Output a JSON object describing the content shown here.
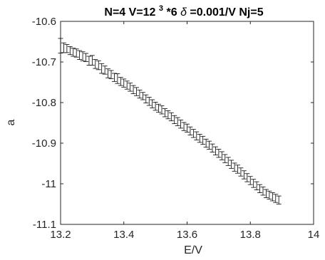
{
  "chart_data": {
    "type": "scatter",
    "title": {
      "part1": "N=4 V=12",
      "sup": "3",
      "part2": "*6 ",
      "delta": "δ",
      "part3": "=0.001/V Nj=5"
    },
    "xlabel": "E/V",
    "ylabel": "a",
    "xlim": [
      13.2,
      14
    ],
    "ylim": [
      -11.1,
      -10.6
    ],
    "xticks": [
      13.2,
      13.4,
      13.6,
      13.8,
      14
    ],
    "xtick_labels": [
      "13.2",
      "13.4",
      "13.6",
      "13.8",
      "14"
    ],
    "yticks": [
      -10.6,
      -10.7,
      -10.8,
      -10.9,
      -11,
      -11.1
    ],
    "ytick_labels": [
      "-10.6",
      "-10.7",
      "-10.8",
      "-10.9",
      "-11",
      "-11.1"
    ],
    "grid": false,
    "legend": "none",
    "series": [
      {
        "color": "#000000",
        "points": [
          [
            13.2,
            -10.66,
            0.018
          ],
          [
            13.21,
            -10.665,
            0.012
          ],
          [
            13.22,
            -10.667,
            0.01
          ],
          [
            13.23,
            -10.672,
            0.01
          ],
          [
            13.24,
            -10.676,
            0.01
          ],
          [
            13.25,
            -10.678,
            0.01
          ],
          [
            13.26,
            -10.683,
            0.011
          ],
          [
            13.27,
            -10.686,
            0.011
          ],
          [
            13.28,
            -10.689,
            0.01
          ],
          [
            13.29,
            -10.697,
            0.011
          ],
          [
            13.3,
            -10.696,
            0.012
          ],
          [
            13.31,
            -10.705,
            0.011
          ],
          [
            13.32,
            -10.708,
            0.011
          ],
          [
            13.33,
            -10.716,
            0.012
          ],
          [
            13.34,
            -10.72,
            0.01
          ],
          [
            13.35,
            -10.728,
            0.011
          ],
          [
            13.36,
            -10.731,
            0.01
          ],
          [
            13.37,
            -10.738,
            0.01
          ],
          [
            13.38,
            -10.741,
            0.012
          ],
          [
            13.39,
            -10.748,
            0.01
          ],
          [
            13.4,
            -10.752,
            0.01
          ],
          [
            13.41,
            -10.757,
            0.01
          ],
          [
            13.42,
            -10.762,
            0.01
          ],
          [
            13.43,
            -10.768,
            0.01
          ],
          [
            13.44,
            -10.773,
            0.01
          ],
          [
            13.45,
            -10.779,
            0.01
          ],
          [
            13.46,
            -10.784,
            0.009
          ],
          [
            13.47,
            -10.791,
            0.01
          ],
          [
            13.48,
            -10.797,
            0.01
          ],
          [
            13.49,
            -10.803,
            0.01
          ],
          [
            13.5,
            -10.809,
            0.01
          ],
          [
            13.51,
            -10.814,
            0.01
          ],
          [
            13.52,
            -10.818,
            0.01
          ],
          [
            13.53,
            -10.825,
            0.01
          ],
          [
            13.54,
            -10.83,
            0.01
          ],
          [
            13.55,
            -10.835,
            0.01
          ],
          [
            13.56,
            -10.842,
            0.01
          ],
          [
            13.57,
            -10.847,
            0.01
          ],
          [
            13.58,
            -10.853,
            0.01
          ],
          [
            13.59,
            -10.859,
            0.01
          ],
          [
            13.6,
            -10.863,
            0.01
          ],
          [
            13.61,
            -10.87,
            0.01
          ],
          [
            13.62,
            -10.876,
            0.01
          ],
          [
            13.63,
            -10.882,
            0.01
          ],
          [
            13.64,
            -10.888,
            0.01
          ],
          [
            13.65,
            -10.893,
            0.01
          ],
          [
            13.66,
            -10.9,
            0.01
          ],
          [
            13.67,
            -10.905,
            0.01
          ],
          [
            13.68,
            -10.912,
            0.01
          ],
          [
            13.69,
            -10.919,
            0.01
          ],
          [
            13.7,
            -10.925,
            0.01
          ],
          [
            13.71,
            -10.931,
            0.01
          ],
          [
            13.72,
            -10.938,
            0.01
          ],
          [
            13.73,
            -10.945,
            0.01
          ],
          [
            13.74,
            -10.952,
            0.01
          ],
          [
            13.75,
            -10.959,
            0.01
          ],
          [
            13.76,
            -10.964,
            0.01
          ],
          [
            13.77,
            -10.971,
            0.01
          ],
          [
            13.78,
            -10.978,
            0.01
          ],
          [
            13.79,
            -10.985,
            0.01
          ],
          [
            13.8,
            -10.992,
            0.01
          ],
          [
            13.81,
            -10.999,
            0.01
          ],
          [
            13.82,
            -11.005,
            0.01
          ],
          [
            13.83,
            -11.012,
            0.01
          ],
          [
            13.84,
            -11.018,
            0.01
          ],
          [
            13.85,
            -11.024,
            0.01
          ],
          [
            13.86,
            -11.028,
            0.01
          ],
          [
            13.87,
            -11.032,
            0.01
          ],
          [
            13.88,
            -11.036,
            0.01
          ],
          [
            13.89,
            -11.04,
            0.01
          ]
        ]
      }
    ]
  }
}
